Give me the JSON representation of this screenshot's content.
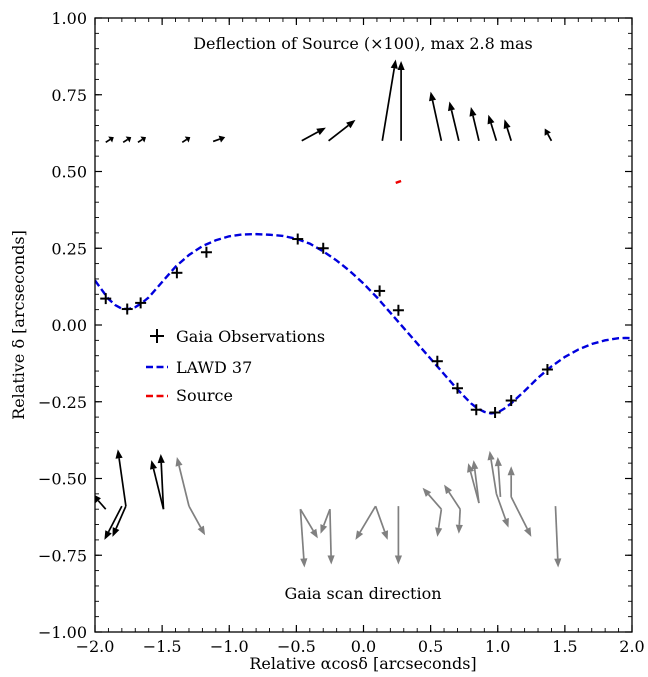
{
  "chart_data": {
    "type": "scatter",
    "xlabel": "Relative αcosδ [arcseconds]",
    "ylabel": "Relative δ [arcseconds]",
    "xlim": [
      -2.0,
      2.0
    ],
    "ylim": [
      -1.0,
      1.0
    ],
    "x_ticks": [
      -2.0,
      -1.5,
      -1.0,
      -0.5,
      0.0,
      0.5,
      1.0,
      1.5,
      2.0
    ],
    "y_ticks": [
      -1.0,
      -0.75,
      -0.5,
      -0.25,
      0.0,
      0.25,
      0.5,
      0.75,
      1.0
    ],
    "x_tick_labels": [
      "−2.0",
      "−1.5",
      "−1.0",
      "−0.5",
      "0.0",
      "0.5",
      "1.0",
      "1.5",
      "2.0"
    ],
    "y_tick_labels": [
      "−1.00",
      "−0.75",
      "−0.50",
      "−0.25",
      "0.00",
      "0.25",
      "0.50",
      "0.75",
      "1.00"
    ],
    "annotations": {
      "top": "Deflection of Source (×100), max 2.8 mas",
      "bottom": "Gaia scan direction"
    },
    "legend": {
      "placement": "center-left",
      "entries": [
        {
          "label": "Gaia Observations",
          "marker": "+",
          "color": "#000000"
        },
        {
          "label": "LAWD 37",
          "style": "dashed",
          "color": "#0000dd"
        },
        {
          "label": "Source",
          "style": "dashed",
          "color": "#ee0000"
        }
      ]
    },
    "observations": {
      "name": "Gaia Observations",
      "color": "#000000",
      "x": [
        -1.92,
        -1.76,
        -1.66,
        -1.39,
        -1.17,
        -0.49,
        -0.3,
        0.12,
        0.26,
        0.55,
        0.7,
        0.84,
        0.98,
        1.1,
        1.37
      ],
      "y": [
        0.086,
        0.052,
        0.072,
        0.17,
        0.237,
        0.28,
        0.25,
        0.111,
        0.048,
        -0.118,
        -0.206,
        -0.276,
        -0.285,
        -0.246,
        -0.145
      ]
    },
    "lawd37_track": {
      "name": "LAWD 37",
      "color": "#0000dd",
      "x": [
        -2.0,
        -1.95,
        -1.9,
        -1.85,
        -1.8,
        -1.75,
        -1.7,
        -1.65,
        -1.6,
        -1.5,
        -1.4,
        -1.3,
        -1.2,
        -1.1,
        -1.0,
        -0.9,
        -0.8,
        -0.7,
        -0.6,
        -0.5,
        -0.4,
        -0.3,
        -0.2,
        -0.1,
        0.0,
        0.1,
        0.2,
        0.3,
        0.4,
        0.5,
        0.6,
        0.7,
        0.8,
        0.85,
        0.9,
        0.95,
        1.0,
        1.05,
        1.1,
        1.2,
        1.3,
        1.4,
        1.5,
        1.6,
        1.7,
        1.8,
        1.9,
        1.95,
        2.0
      ],
      "y": [
        0.145,
        0.115,
        0.085,
        0.065,
        0.053,
        0.052,
        0.058,
        0.072,
        0.09,
        0.14,
        0.19,
        0.228,
        0.257,
        0.276,
        0.289,
        0.295,
        0.296,
        0.294,
        0.29,
        0.281,
        0.265,
        0.24,
        0.21,
        0.175,
        0.135,
        0.09,
        0.04,
        -0.01,
        -0.06,
        -0.11,
        -0.16,
        -0.21,
        -0.255,
        -0.272,
        -0.283,
        -0.288,
        -0.285,
        -0.272,
        -0.255,
        -0.215,
        -0.172,
        -0.135,
        -0.104,
        -0.08,
        -0.062,
        -0.05,
        -0.043,
        -0.042,
        -0.043
      ]
    },
    "source_track": {
      "name": "Source",
      "color": "#ee0000",
      "x": [
        0.24,
        0.26,
        0.28
      ],
      "y": [
        0.463,
        0.466,
        0.469
      ]
    },
    "deflection_arrows": {
      "color": "#000000",
      "items": [
        {
          "x0": -1.92,
          "y0": 0.595,
          "x1": -1.86,
          "y1": 0.612
        },
        {
          "x0": -1.79,
          "y0": 0.595,
          "x1": -1.73,
          "y1": 0.612
        },
        {
          "x0": -1.68,
          "y0": 0.595,
          "x1": -1.62,
          "y1": 0.612
        },
        {
          "x0": -1.35,
          "y0": 0.595,
          "x1": -1.29,
          "y1": 0.612
        },
        {
          "x0": -1.12,
          "y0": 0.598,
          "x1": -1.03,
          "y1": 0.612
        },
        {
          "x0": -0.46,
          "y0": 0.6,
          "x1": -0.28,
          "y1": 0.643
        },
        {
          "x0": -0.26,
          "y0": 0.6,
          "x1": -0.06,
          "y1": 0.668
        },
        {
          "x0": 0.14,
          "y0": 0.6,
          "x1": 0.24,
          "y1": 0.865
        },
        {
          "x0": 0.28,
          "y0": 0.6,
          "x1": 0.28,
          "y1": 0.86
        },
        {
          "x0": 0.58,
          "y0": 0.6,
          "x1": 0.5,
          "y1": 0.76
        },
        {
          "x0": 0.71,
          "y0": 0.6,
          "x1": 0.64,
          "y1": 0.728
        },
        {
          "x0": 0.86,
          "y0": 0.6,
          "x1": 0.8,
          "y1": 0.71
        },
        {
          "x0": 0.99,
          "y0": 0.6,
          "x1": 0.93,
          "y1": 0.685
        },
        {
          "x0": 1.1,
          "y0": 0.6,
          "x1": 1.05,
          "y1": 0.67
        },
        {
          "x0": 1.4,
          "y0": 0.6,
          "x1": 1.35,
          "y1": 0.64
        }
      ]
    },
    "scan_direction_arrows": {
      "colors": [
        "#000000",
        "#808080"
      ],
      "items": [
        {
          "x0": -1.92,
          "y0": -0.6,
          "x1": -2.02,
          "y1": -0.55,
          "color": "#000000"
        },
        {
          "x0": -1.8,
          "y0": -0.59,
          "x1": -1.93,
          "y1": -0.7,
          "color": "#000000"
        },
        {
          "x0": -1.77,
          "y0": -0.59,
          "x1": -1.87,
          "y1": -0.69,
          "color": "#000000"
        },
        {
          "x0": -1.77,
          "y0": -0.59,
          "x1": -1.83,
          "y1": -0.405,
          "color": "#000000"
        },
        {
          "x0": -1.49,
          "y0": -0.6,
          "x1": -1.58,
          "y1": -0.44,
          "color": "#000000"
        },
        {
          "x0": -1.49,
          "y0": -0.6,
          "x1": -1.51,
          "y1": -0.42,
          "color": "#000000"
        },
        {
          "x0": -1.3,
          "y0": -0.59,
          "x1": -1.39,
          "y1": -0.43,
          "color": "#808080"
        },
        {
          "x0": -1.3,
          "y0": -0.59,
          "x1": -1.18,
          "y1": -0.685,
          "color": "#808080"
        },
        {
          "x0": -0.47,
          "y0": -0.6,
          "x1": -0.44,
          "y1": -0.79,
          "color": "#808080"
        },
        {
          "x0": -0.47,
          "y0": -0.6,
          "x1": -0.34,
          "y1": -0.695,
          "color": "#808080"
        },
        {
          "x0": -0.25,
          "y0": -0.6,
          "x1": -0.24,
          "y1": -0.78,
          "color": "#808080"
        },
        {
          "x0": -0.25,
          "y0": -0.6,
          "x1": -0.32,
          "y1": -0.68,
          "color": "#808080"
        },
        {
          "x0": 0.09,
          "y0": -0.59,
          "x1": -0.06,
          "y1": -0.7,
          "color": "#808080"
        },
        {
          "x0": 0.09,
          "y0": -0.59,
          "x1": 0.18,
          "y1": -0.7,
          "color": "#808080"
        },
        {
          "x0": 0.26,
          "y0": -0.59,
          "x1": 0.26,
          "y1": -0.78,
          "color": "#808080"
        },
        {
          "x0": 0.58,
          "y0": -0.6,
          "x1": 0.44,
          "y1": -0.53,
          "color": "#808080"
        },
        {
          "x0": 0.58,
          "y0": -0.6,
          "x1": 0.55,
          "y1": -0.69,
          "color": "#808080"
        },
        {
          "x0": 0.72,
          "y0": -0.6,
          "x1": 0.6,
          "y1": -0.52,
          "color": "#808080"
        },
        {
          "x0": 0.72,
          "y0": -0.6,
          "x1": 0.71,
          "y1": -0.68,
          "color": "#808080"
        },
        {
          "x0": 0.86,
          "y0": -0.58,
          "x1": 0.78,
          "y1": -0.45,
          "color": "#808080"
        },
        {
          "x0": 0.86,
          "y0": -0.58,
          "x1": 0.82,
          "y1": -0.44,
          "color": "#808080"
        },
        {
          "x0": 0.99,
          "y0": -0.55,
          "x1": 0.94,
          "y1": -0.41,
          "color": "#808080"
        },
        {
          "x0": 0.99,
          "y0": -0.55,
          "x1": 1.08,
          "y1": -0.66,
          "color": "#808080"
        },
        {
          "x0": 1.02,
          "y0": -0.56,
          "x1": 1.0,
          "y1": -0.43,
          "color": "#808080"
        },
        {
          "x0": 1.1,
          "y0": -0.56,
          "x1": 1.1,
          "y1": -0.46,
          "color": "#808080"
        },
        {
          "x0": 1.1,
          "y0": -0.56,
          "x1": 1.25,
          "y1": -0.69,
          "color": "#808080"
        },
        {
          "x0": 1.43,
          "y0": -0.59,
          "x1": 1.45,
          "y1": -0.79,
          "color": "#808080"
        }
      ]
    }
  }
}
